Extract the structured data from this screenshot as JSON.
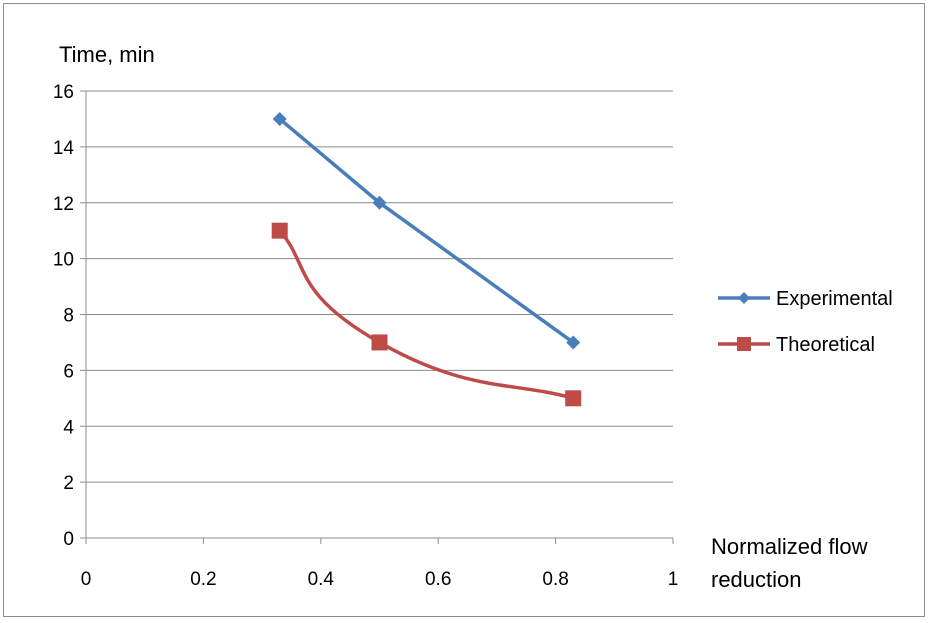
{
  "chart_data": {
    "type": "line",
    "title": "",
    "ylabel": "Time, min",
    "xlabel_lines": [
      "Normalized flow",
      "reduction"
    ],
    "xlim": [
      0,
      1
    ],
    "ylim": [
      0,
      16
    ],
    "x_ticks": [
      0,
      0.2,
      0.4,
      0.6,
      0.8,
      1
    ],
    "x_tick_labels": [
      "0",
      "0.2",
      "0.4",
      "0.6",
      "0.8",
      "1"
    ],
    "y_ticks": [
      0,
      2,
      4,
      6,
      8,
      10,
      12,
      14,
      16
    ],
    "y_tick_labels": [
      "0",
      "2",
      "4",
      "6",
      "8",
      "10",
      "12",
      "14",
      "16"
    ],
    "grid": "horizontal",
    "legend_position": "right",
    "series": [
      {
        "name": "Experimental",
        "color": "#4a7ebb",
        "marker": "diamond",
        "smooth": false,
        "x": [
          0.33,
          0.5,
          0.83
        ],
        "y": [
          15,
          12,
          7
        ]
      },
      {
        "name": "Theoretical",
        "color": "#be4b48",
        "marker": "square",
        "smooth": true,
        "x": [
          0.33,
          0.5,
          0.83
        ],
        "y": [
          11,
          7,
          5
        ]
      }
    ]
  }
}
